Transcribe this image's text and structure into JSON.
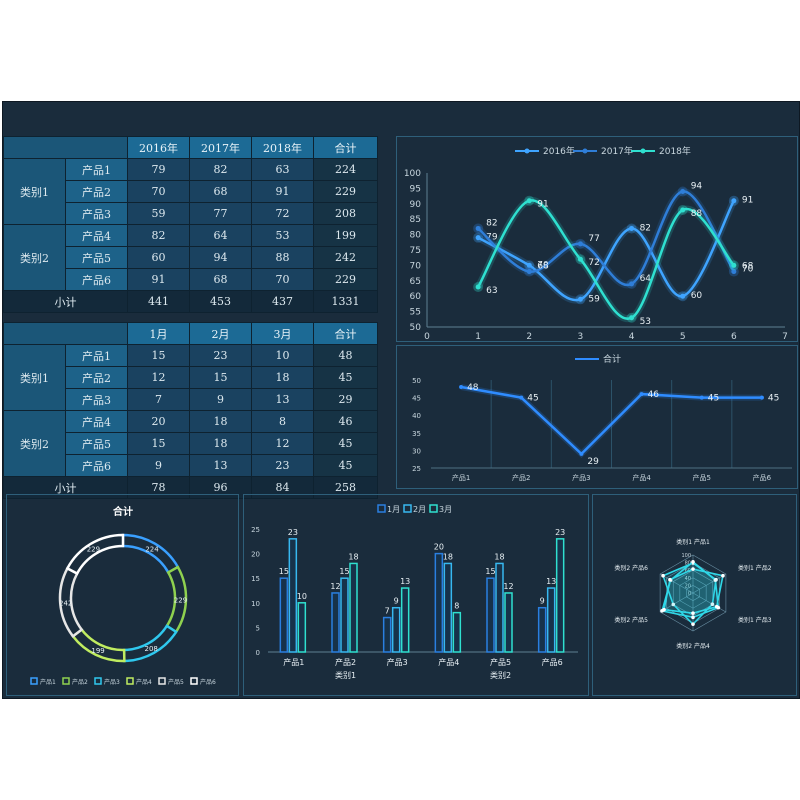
{
  "table1": {
    "headers": [
      "2016年",
      "2017年",
      "2018年",
      "合计"
    ],
    "rows": [
      {
        "cat": "类别1",
        "name": "产品1",
        "cells": [
          "79",
          "82",
          "63",
          "224"
        ]
      },
      {
        "cat": "类别1",
        "name": "产品2",
        "cells": [
          "70",
          "68",
          "91",
          "229"
        ]
      },
      {
        "cat": "类别1",
        "name": "产品3",
        "cells": [
          "59",
          "77",
          "72",
          "208"
        ]
      },
      {
        "cat": "类别2",
        "name": "产品4",
        "cells": [
          "82",
          "64",
          "53",
          "199"
        ]
      },
      {
        "cat": "类别2",
        "name": "产品5",
        "cells": [
          "60",
          "94",
          "88",
          "242"
        ]
      },
      {
        "cat": "类别2",
        "name": "产品6",
        "cells": [
          "91",
          "68",
          "70",
          "229"
        ]
      }
    ],
    "total_label": "小计",
    "total": [
      "441",
      "453",
      "437",
      "1331"
    ]
  },
  "table2": {
    "headers": [
      "1月",
      "2月",
      "3月",
      "合计"
    ],
    "rows": [
      {
        "cat": "类别1",
        "name": "产品1",
        "cells": [
          "15",
          "23",
          "10",
          "48"
        ]
      },
      {
        "cat": "类别1",
        "name": "产品2",
        "cells": [
          "12",
          "15",
          "18",
          "45"
        ]
      },
      {
        "cat": "类别1",
        "name": "产品3",
        "cells": [
          "7",
          "9",
          "13",
          "29"
        ]
      },
      {
        "cat": "类别2",
        "name": "产品4",
        "cells": [
          "20",
          "18",
          "8",
          "46"
        ]
      },
      {
        "cat": "类别2",
        "name": "产品5",
        "cells": [
          "15",
          "18",
          "12",
          "45"
        ]
      },
      {
        "cat": "类别2",
        "name": "产品6",
        "cells": [
          "9",
          "13",
          "23",
          "45"
        ]
      }
    ],
    "total_label": "小计",
    "total": [
      "78",
      "96",
      "84",
      "258"
    ]
  },
  "chart_data": [
    {
      "type": "line",
      "x": [
        1,
        2,
        3,
        4,
        5,
        6
      ],
      "xlim": [
        0,
        7
      ],
      "ylim": [
        50,
        100
      ],
      "x_ticks": [
        "0",
        "1",
        "2",
        "3",
        "4",
        "5",
        "6",
        "7"
      ],
      "y_ticks": [
        "50",
        "55",
        "60",
        "65",
        "70",
        "75",
        "80",
        "85",
        "90",
        "95",
        "100"
      ],
      "legend": "top",
      "smooth": true,
      "series": [
        {
          "name": "2016年",
          "values": [
            79,
            70,
            59,
            82,
            60,
            91
          ],
          "color": "#3fa4ff"
        },
        {
          "name": "2017年",
          "values": [
            82,
            68,
            77,
            64,
            94,
            68
          ],
          "color": "#2f7ed8"
        },
        {
          "name": "2018年",
          "values": [
            63,
            91,
            72,
            53,
            88,
            70
          ],
          "color": "#2fe0d0"
        }
      ]
    },
    {
      "type": "line",
      "categories": [
        "产品1",
        "产品2",
        "产品3",
        "产品4",
        "产品5",
        "产品6"
      ],
      "ylim": [
        25,
        50
      ],
      "y_ticks": [
        "25",
        "30",
        "35",
        "40",
        "45",
        "50"
      ],
      "legend": "top",
      "series": [
        {
          "name": "合计",
          "values": [
            48,
            45,
            29,
            46,
            45,
            45
          ],
          "color": "#2f8cff"
        }
      ]
    },
    {
      "type": "pie",
      "donut": true,
      "title": "合计",
      "legend": "bottom",
      "categories": [
        "产品1",
        "产品2",
        "产品3",
        "产品4",
        "产品5",
        "产品6"
      ],
      "values": [
        224,
        229,
        208,
        199,
        242,
        229
      ],
      "colors": [
        "#3aa0ff",
        "#8fd14f",
        "#2fc8ee",
        "#c0ec60",
        "#e6e6e6",
        "#ffffff"
      ]
    },
    {
      "type": "bar",
      "legend": "top",
      "categories": [
        "产品1",
        "产品2",
        "产品3",
        "产品4",
        "产品5",
        "产品6"
      ],
      "groups": [
        "类别1",
        "类别2"
      ],
      "ylim": [
        0,
        25
      ],
      "y_ticks": [
        "0",
        "5",
        "10",
        "15",
        "20",
        "25"
      ],
      "series": [
        {
          "name": "1月",
          "values": [
            15,
            12,
            7,
            20,
            15,
            9
          ],
          "color": "#2a7fe0"
        },
        {
          "name": "2月",
          "values": [
            23,
            15,
            9,
            18,
            18,
            13
          ],
          "color": "#37b8f0"
        },
        {
          "name": "3月",
          "values": [
            10,
            18,
            13,
            8,
            12,
            23
          ],
          "color": "#2fe0cf"
        }
      ]
    },
    {
      "type": "radar",
      "axes": [
        "类别1 产品1",
        "类别1 产品2",
        "类别1 产品3",
        "类别2 产品4",
        "类别2 产品5",
        "类别2 产品6"
      ],
      "r_ticks": [
        "0",
        "20",
        "40",
        "60",
        "80",
        "100"
      ],
      "rlim": [
        0,
        100
      ],
      "series": [
        {
          "name": "2016年",
          "values": [
            79,
            70,
            59,
            82,
            60,
            91
          ],
          "color": "#2fd8e8"
        },
        {
          "name": "2017年",
          "values": [
            82,
            68,
            77,
            64,
            94,
            68
          ],
          "color": "#2fd8e8"
        },
        {
          "name": "2018年",
          "values": [
            63,
            91,
            72,
            53,
            88,
            70
          ],
          "color": "#2fd8e8"
        }
      ]
    }
  ]
}
